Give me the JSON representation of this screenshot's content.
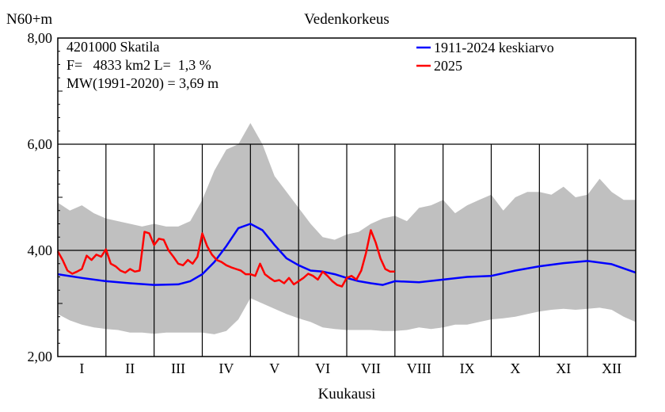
{
  "chart_data": {
    "type": "line",
    "title": "Vedenkorkeus",
    "ylabel": "N60+m",
    "xlabel": "Kuukausi",
    "ylim": [
      2.0,
      8.0
    ],
    "y_ticks": [
      "2,00",
      "4,00",
      "6,00",
      "8,00"
    ],
    "categories": [
      "I",
      "II",
      "III",
      "IV",
      "V",
      "VI",
      "VII",
      "VIII",
      "IX",
      "X",
      "XI",
      "XII"
    ],
    "x_unit": "month",
    "xlim": [
      0,
      12
    ],
    "grid": true,
    "legend_position": "top-right",
    "annotations": [
      "4201000 Skatila",
      "F=   4833 km2 L=  1,3 %",
      "MW(1991-2020) = 3,69 m"
    ],
    "band": {
      "color": "#c0c0c0",
      "x": [
        0.0,
        0.25,
        0.5,
        0.75,
        1.0,
        1.25,
        1.5,
        1.75,
        2.0,
        2.25,
        2.5,
        2.75,
        3.0,
        3.25,
        3.5,
        3.75,
        4.0,
        4.25,
        4.5,
        4.75,
        5.0,
        5.25,
        5.5,
        5.75,
        6.0,
        6.25,
        6.5,
        6.75,
        7.0,
        7.25,
        7.5,
        7.75,
        8.0,
        8.25,
        8.5,
        8.75,
        9.0,
        9.25,
        9.5,
        9.75,
        10.0,
        10.25,
        10.5,
        10.75,
        11.0,
        11.25,
        11.5,
        11.75,
        12.0
      ],
      "upper": [
        4.9,
        4.75,
        4.85,
        4.7,
        4.6,
        4.55,
        4.5,
        4.45,
        4.5,
        4.45,
        4.45,
        4.55,
        4.95,
        5.5,
        5.9,
        6.0,
        6.4,
        6.0,
        5.4,
        5.1,
        4.8,
        4.5,
        4.25,
        4.2,
        4.3,
        4.35,
        4.5,
        4.6,
        4.65,
        4.55,
        4.8,
        4.85,
        4.95,
        4.7,
        4.85,
        4.95,
        5.05,
        4.75,
        5.0,
        5.1,
        5.1,
        5.05,
        5.2,
        5.0,
        5.05,
        5.35,
        5.1,
        4.95,
        4.95
      ],
      "lower": [
        2.8,
        2.68,
        2.6,
        2.55,
        2.52,
        2.5,
        2.45,
        2.45,
        2.43,
        2.45,
        2.45,
        2.45,
        2.45,
        2.42,
        2.48,
        2.7,
        3.1,
        3.0,
        2.9,
        2.8,
        2.72,
        2.65,
        2.55,
        2.52,
        2.5,
        2.5,
        2.5,
        2.48,
        2.48,
        2.5,
        2.55,
        2.52,
        2.55,
        2.6,
        2.6,
        2.65,
        2.7,
        2.72,
        2.75,
        2.8,
        2.85,
        2.88,
        2.9,
        2.88,
        2.9,
        2.92,
        2.88,
        2.75,
        2.65
      ]
    },
    "series": [
      {
        "name": "1911-2024 keskiarvo",
        "color": "#0000ff",
        "x": [
          0.0,
          0.5,
          1.0,
          1.5,
          2.0,
          2.5,
          2.75,
          3.0,
          3.25,
          3.5,
          3.75,
          4.0,
          4.25,
          4.5,
          4.75,
          5.0,
          5.25,
          5.5,
          5.75,
          6.0,
          6.25,
          6.5,
          6.75,
          7.0,
          7.5,
          8.0,
          8.5,
          9.0,
          9.5,
          10.0,
          10.5,
          11.0,
          11.5,
          12.0
        ],
        "values": [
          3.55,
          3.48,
          3.42,
          3.38,
          3.35,
          3.36,
          3.42,
          3.55,
          3.78,
          4.08,
          4.42,
          4.5,
          4.38,
          4.1,
          3.85,
          3.72,
          3.62,
          3.6,
          3.55,
          3.48,
          3.42,
          3.38,
          3.35,
          3.42,
          3.4,
          3.45,
          3.5,
          3.52,
          3.62,
          3.7,
          3.76,
          3.8,
          3.74,
          3.58
        ]
      },
      {
        "name": "2025",
        "color": "#ff0000",
        "x": [
          0.0,
          0.1,
          0.2,
          0.3,
          0.4,
          0.5,
          0.6,
          0.7,
          0.8,
          0.9,
          1.0,
          1.1,
          1.2,
          1.3,
          1.4,
          1.5,
          1.6,
          1.7,
          1.8,
          1.9,
          2.0,
          2.1,
          2.2,
          2.3,
          2.4,
          2.5,
          2.6,
          2.7,
          2.8,
          2.9,
          3.0,
          3.1,
          3.2,
          3.3,
          3.4,
          3.5,
          3.6,
          3.7,
          3.8,
          3.9,
          4.0,
          4.1,
          4.2,
          4.3,
          4.4,
          4.5,
          4.6,
          4.7,
          4.8,
          4.9,
          5.0,
          5.1,
          5.2,
          5.3,
          5.4,
          5.5,
          5.6,
          5.7,
          5.8,
          5.9,
          6.0,
          6.1,
          6.2,
          6.3,
          6.4,
          6.5,
          6.6,
          6.7,
          6.8,
          6.9,
          7.0
        ],
        "values": [
          3.98,
          3.82,
          3.62,
          3.56,
          3.6,
          3.65,
          3.9,
          3.82,
          3.92,
          3.88,
          4.02,
          3.75,
          3.7,
          3.62,
          3.58,
          3.65,
          3.6,
          3.62,
          4.35,
          4.32,
          4.1,
          4.22,
          4.2,
          4.0,
          3.88,
          3.75,
          3.72,
          3.82,
          3.75,
          3.88,
          4.32,
          4.08,
          3.92,
          3.82,
          3.78,
          3.72,
          3.68,
          3.65,
          3.62,
          3.55,
          3.55,
          3.52,
          3.75,
          3.55,
          3.48,
          3.42,
          3.44,
          3.38,
          3.48,
          3.36,
          3.42,
          3.48,
          3.56,
          3.52,
          3.45,
          3.6,
          3.52,
          3.42,
          3.35,
          3.32,
          3.48,
          3.52,
          3.45,
          3.62,
          3.95,
          4.38,
          4.15,
          3.85,
          3.65,
          3.6,
          3.6
        ]
      }
    ]
  }
}
